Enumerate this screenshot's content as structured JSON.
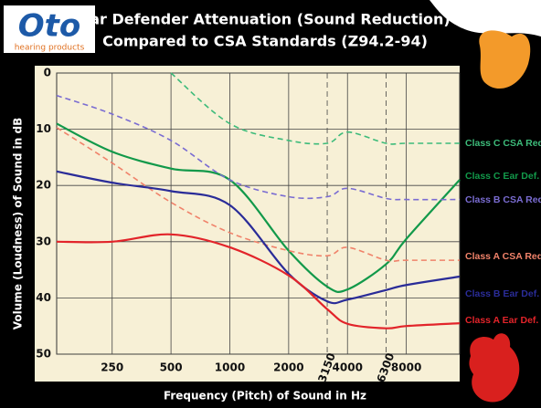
{
  "logo": {
    "brand": "Oto",
    "tagline": "hearing products"
  },
  "chart_data": {
    "type": "line",
    "title": "Ear Defender Attenuation (Sound Reduction)",
    "subtitle": "Compared to CSA Standards (Z94.2-94)",
    "x_label": "Frequency (Pitch) of Sound in Hz",
    "y_label": "Volume (Loudness) of Sound in dB",
    "x": [
      130,
      250,
      500,
      1000,
      2000,
      3150,
      4000,
      6300,
      8000,
      15000
    ],
    "xlim": [
      130,
      15000
    ],
    "log_x": true,
    "xticks": [
      250,
      500,
      1000,
      2000,
      4000,
      8000
    ],
    "minor_xticks": [
      3150,
      6300
    ],
    "ylim": [
      0,
      50
    ],
    "invert_y": true,
    "yticks": [
      0,
      10,
      20,
      30,
      40,
      50
    ],
    "grid": true,
    "legend": "right",
    "series": [
      {
        "name": "Class C CSA Req.",
        "color": "#3dbb7a",
        "dashed": true,
        "values": [
          null,
          null,
          0,
          9,
          12,
          12.5,
          10.5,
          12.5,
          12.5,
          12.5
        ]
      },
      {
        "name": "Class C Ear Def.",
        "color": "#12994a",
        "dashed": false,
        "values": [
          9,
          14,
          17,
          19,
          31.6,
          38,
          38.5,
          34,
          29.5,
          19
        ]
      },
      {
        "name": "Class B CSA Req.",
        "color": "#7a6cd2",
        "dashed": true,
        "values": [
          4,
          7.3,
          12,
          19,
          22,
          22,
          20.5,
          22.3,
          22.5,
          22.5
        ]
      },
      {
        "name": "Class A CSA Req.",
        "color": "#f0826a",
        "dashed": true,
        "values": [
          9.7,
          16,
          23,
          28.4,
          31.6,
          32.5,
          31,
          33.3,
          33.3,
          33.3
        ]
      },
      {
        "name": "Class B Ear Def.",
        "color": "#2a2c98",
        "dashed": false,
        "values": [
          17.5,
          19.5,
          21,
          23.5,
          35.7,
          40.6,
          40.3,
          38.6,
          37.7,
          36.2
        ]
      },
      {
        "name": "Class A Ear Def.",
        "color": "#e2242a",
        "dashed": false,
        "values": [
          30,
          30,
          28.7,
          31,
          36,
          42,
          44.6,
          45.4,
          45,
          44.5
        ]
      }
    ]
  }
}
